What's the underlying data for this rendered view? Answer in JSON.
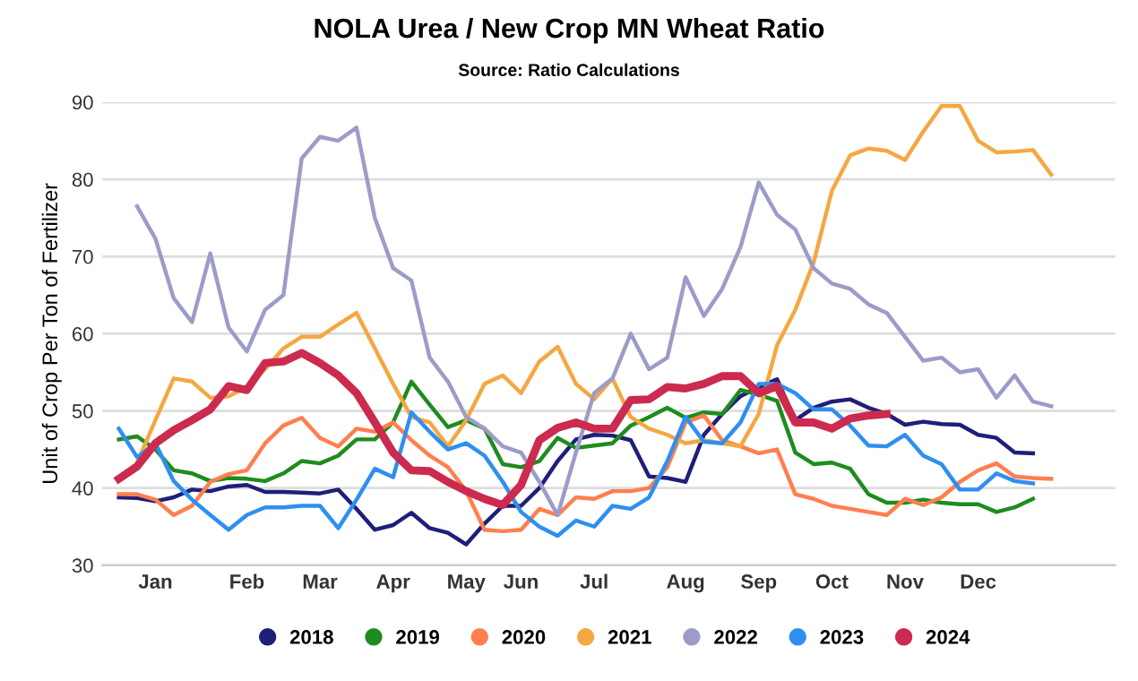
{
  "chart_data": {
    "type": "line",
    "title": "NOLA Urea / New Crop MN Wheat Ratio",
    "subtitle": "Source: Ratio Calculations",
    "ylabel": "Unit of Crop Per Ton of Fertilizer",
    "categories": [
      null,
      null,
      "Jan",
      null,
      null,
      null,
      null,
      "Feb",
      null,
      null,
      null,
      "Mar",
      null,
      null,
      null,
      "Apr",
      null,
      null,
      null,
      "May",
      null,
      null,
      "Jun",
      null,
      null,
      null,
      "Jul",
      null,
      null,
      null,
      null,
      "Aug",
      null,
      null,
      null,
      "Sep",
      null,
      null,
      null,
      "Oct",
      null,
      null,
      null,
      "Nov",
      null,
      null,
      null,
      "Dec",
      null,
      null,
      null,
      null
    ],
    "ylim": [
      30,
      90
    ],
    "yticks": [
      30,
      40,
      50,
      60,
      70,
      80,
      90
    ],
    "grid": "y",
    "legend": "bottom",
    "marker": "none",
    "line_style": "solid",
    "series": [
      {
        "name": "2018",
        "color": "#1f1f7a",
        "values": [
          38.8,
          38.7,
          38.3,
          38.8,
          39.8,
          39.6,
          40.2,
          40.4,
          39.5,
          39.5,
          39.4,
          39.3,
          39.8,
          37.3,
          34.6,
          35.2,
          36.8,
          34.8,
          34.2,
          32.7,
          35.4,
          37.7,
          37.7,
          40,
          43.5,
          46.3,
          46.9,
          46.8,
          46.2,
          41.5,
          41.3,
          40.8,
          46.9,
          49.6,
          51.9,
          53.1,
          54.1,
          48.8,
          50.4,
          51.2,
          51.5,
          50.4,
          49.6,
          48.2,
          48.6,
          48.3,
          48.2,
          46.9,
          46.5,
          44.6,
          44.5,
          null
        ]
      },
      {
        "name": "2019",
        "color": "#1e8c1e",
        "values": [
          46.3,
          46.7,
          45,
          42.3,
          41.9,
          40.9,
          41.3,
          41.2,
          40.9,
          41.9,
          43.5,
          43.2,
          44.2,
          46.3,
          46.3,
          48.5,
          53.8,
          50.8,
          47.9,
          48.8,
          47.7,
          43.1,
          42.7,
          43.5,
          46.5,
          45.2,
          45.5,
          45.8,
          48.1,
          49.2,
          50.4,
          49.1,
          49.8,
          49.6,
          52.7,
          52.1,
          51.3,
          44.6,
          43.1,
          43.3,
          42.5,
          39.2,
          38.1,
          38.1,
          38.5,
          38.1,
          37.9,
          37.9,
          36.9,
          37.5,
          38.6,
          null
        ]
      },
      {
        "name": "2020",
        "color": "#ff7f4f",
        "values": [
          39.2,
          39.2,
          38.5,
          36.5,
          37.7,
          40.8,
          41.8,
          42.3,
          45.8,
          48.1,
          49.1,
          46.5,
          45.4,
          47.7,
          47.3,
          48.5,
          46.2,
          44.2,
          42.7,
          39.6,
          34.6,
          34.4,
          34.6,
          37.3,
          36.5,
          38.8,
          38.6,
          39.6,
          39.6,
          40,
          42.7,
          48.5,
          49.4,
          46.2,
          45.4,
          44.5,
          45,
          39.2,
          38.6,
          37.7,
          37.3,
          36.9,
          36.5,
          38.6,
          37.8,
          38.8,
          40.8,
          42.3,
          43.2,
          41.5,
          41.3,
          41.2
        ]
      },
      {
        "name": "2021",
        "color": "#f5a742",
        "values": [
          null,
          43.3,
          48.8,
          54.2,
          53.8,
          51.7,
          51.9,
          53.1,
          55.4,
          58.1,
          59.6,
          59.6,
          61.2,
          62.7,
          58.1,
          53.5,
          49.2,
          48.5,
          45.4,
          48.8,
          53.5,
          54.6,
          52.3,
          56.4,
          58.3,
          53.5,
          51.5,
          54.2,
          49.2,
          47.7,
          46.9,
          45.8,
          46.2,
          45.8,
          45.4,
          49.6,
          58.5,
          63.1,
          69.2,
          78.5,
          83.1,
          84,
          83.7,
          82.5,
          86.2,
          89.5,
          89.5,
          85,
          83.5,
          83.6,
          83.8,
          80.6
        ]
      },
      {
        "name": "2022",
        "color": "#9c9cc9",
        "values": [
          null,
          76.5,
          72.3,
          64.6,
          61.5,
          70.4,
          60.8,
          57.7,
          63.1,
          65,
          82.7,
          85.5,
          85,
          86.7,
          75,
          68.5,
          66.9,
          56.9,
          53.8,
          49.2,
          47.7,
          45.4,
          44.6,
          40.8,
          36.5,
          44.6,
          52.3,
          54.2,
          60,
          55.4,
          56.9,
          67.3,
          62.3,
          65.8,
          71.2,
          79.6,
          75.4,
          73.5,
          68.5,
          66.5,
          65.8,
          63.8,
          62.7,
          59.6,
          56.5,
          56.9,
          55,
          55.4,
          51.7,
          54.6,
          51.2,
          50.6
        ]
      },
      {
        "name": "2023",
        "color": "#2e8ff0",
        "values": [
          47.7,
          44,
          45.8,
          40.9,
          38.5,
          36.5,
          34.6,
          36.5,
          37.5,
          37.5,
          37.7,
          37.7,
          34.8,
          38.5,
          42.5,
          41.4,
          49.8,
          47.3,
          45,
          45.8,
          44.2,
          40.8,
          36.9,
          35,
          33.8,
          35.8,
          35,
          37.7,
          37.3,
          38.8,
          43.5,
          49.2,
          46,
          45.8,
          48.5,
          53.5,
          53.5,
          52.3,
          50.2,
          50.2,
          48.1,
          45.5,
          45.4,
          46.9,
          44.2,
          43.1,
          39.8,
          39.8,
          41.9,
          40.9,
          40.6,
          null
        ]
      },
      {
        "name": "2024",
        "color": "#cc2a4f",
        "values": [
          41.2,
          42.8,
          45.8,
          47.5,
          48.8,
          50.2,
          53.2,
          52.7,
          56.2,
          56.4,
          57.5,
          56.2,
          54.6,
          52.3,
          48.5,
          44.6,
          42.3,
          42.2,
          40.8,
          39.6,
          38.6,
          37.8,
          40.4,
          46.2,
          47.8,
          48.5,
          47.7,
          47.7,
          51.4,
          51.5,
          53.1,
          52.9,
          53.5,
          54.5,
          54.5,
          52.3,
          53.2,
          48.5,
          48.5,
          47.7,
          49,
          49.4,
          49.6,
          null,
          null,
          null,
          null,
          null,
          null,
          null,
          null,
          null
        ]
      }
    ]
  }
}
